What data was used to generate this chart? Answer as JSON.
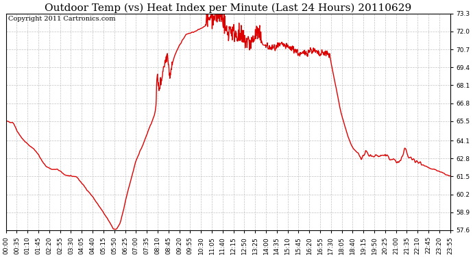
{
  "title": "Outdoor Temp (vs) Heat Index per Minute (Last 24 Hours) 20110629",
  "copyright": "Copyright 2011 Cartronics.com",
  "line_color": "#dd0000",
  "bg_color": "#ffffff",
  "plot_bg_color": "#ffffff",
  "grid_color": "#bbbbbb",
  "ylim": [
    57.6,
    73.3
  ],
  "yticks": [
    57.6,
    58.9,
    60.2,
    61.5,
    62.8,
    64.1,
    65.5,
    66.8,
    68.1,
    69.4,
    70.7,
    72.0,
    73.3
  ],
  "xtick_labels": [
    "00:00",
    "00:35",
    "01:10",
    "01:45",
    "02:20",
    "02:55",
    "03:30",
    "04:05",
    "04:40",
    "05:15",
    "05:50",
    "06:25",
    "07:00",
    "07:35",
    "08:10",
    "08:45",
    "09:20",
    "09:55",
    "10:30",
    "11:05",
    "11:40",
    "12:15",
    "12:50",
    "13:25",
    "14:00",
    "14:35",
    "15:10",
    "15:45",
    "16:20",
    "16:55",
    "17:30",
    "18:05",
    "18:40",
    "19:15",
    "19:50",
    "20:25",
    "21:00",
    "21:35",
    "22:10",
    "22:45",
    "23:20",
    "23:55"
  ],
  "title_fontsize": 11,
  "copyright_fontsize": 7,
  "tick_fontsize": 6.5,
  "line_width": 1.0,
  "figsize": [
    6.9,
    3.75
  ],
  "dpi": 100
}
